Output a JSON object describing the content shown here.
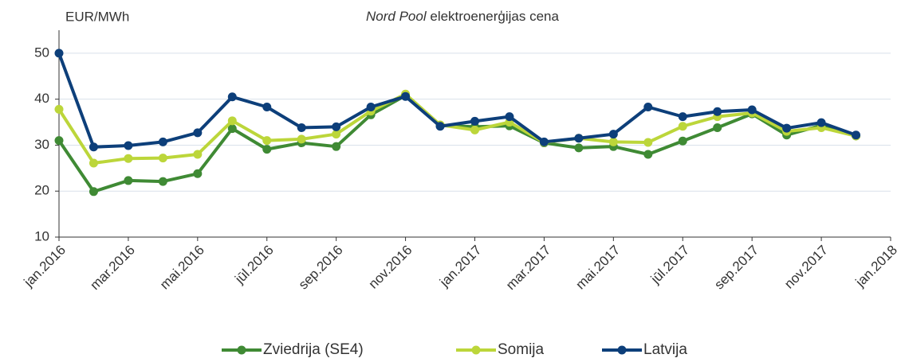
{
  "chart_data": {
    "type": "line",
    "title_italic": "Nord Pool",
    "title": "elektroenerģijas cena",
    "y_label": "EUR/MWh",
    "categories": [
      "jan.2016",
      null,
      "mar.2016",
      null,
      "mai.2016",
      null,
      "jūl.2016",
      null,
      "sep.2016",
      null,
      "nov.2016",
      null,
      "jan.2017",
      null,
      "mar.2017",
      null,
      "mai.2017",
      null,
      "jūl.2017",
      null,
      "sep.2017",
      null,
      "nov.2017",
      null,
      "jan.2018"
    ],
    "series": [
      {
        "name": "Zviedrija (SE4)",
        "color": "#3f8a34",
        "values": [
          31.0,
          19.9,
          22.3,
          22.1,
          23.8,
          33.6,
          29.1,
          30.5,
          29.7,
          36.6,
          40.8,
          34.3,
          34.0,
          34.2,
          30.5,
          29.4,
          29.7,
          28.0,
          30.9,
          33.8,
          36.8,
          32.2,
          34.3,
          32.0,
          null
        ]
      },
      {
        "name": "Somija",
        "color": "#bcd63a",
        "values": [
          37.8,
          26.1,
          27.1,
          27.2,
          28.0,
          35.3,
          31.0,
          31.3,
          32.4,
          37.4,
          41.1,
          34.4,
          33.3,
          35.0,
          30.6,
          31.5,
          30.7,
          30.6,
          34.1,
          36.2,
          37.0,
          33.0,
          33.8,
          32.0,
          null
        ]
      },
      {
        "name": "Latvija",
        "color": "#0d3f7a",
        "values": [
          50.0,
          29.6,
          29.9,
          30.7,
          32.7,
          40.5,
          38.3,
          33.8,
          34.0,
          38.3,
          40.6,
          34.1,
          35.2,
          36.2,
          30.7,
          31.5,
          32.4,
          38.3,
          36.2,
          37.3,
          37.7,
          33.7,
          34.9,
          32.2,
          null
        ]
      }
    ],
    "ylim": [
      10,
      55
    ],
    "yticks": [
      10,
      20,
      30,
      40,
      50
    ],
    "grid": true,
    "legend": "bottom"
  }
}
